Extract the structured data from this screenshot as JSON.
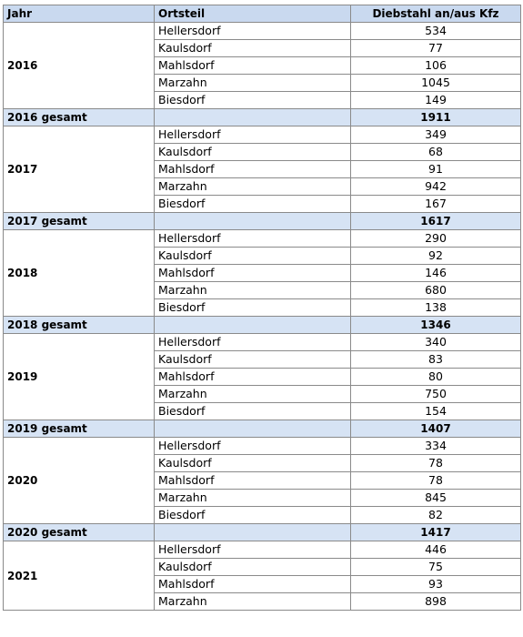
{
  "headers": {
    "year": "Jahr",
    "district": "Ortsteil",
    "value": "Diebstahl an/aus Kfz"
  },
  "years": [
    {
      "year": "2016",
      "rows": [
        {
          "district": "Hellersdorf",
          "value": "534"
        },
        {
          "district": "Kaulsdorf",
          "value": "77"
        },
        {
          "district": "Mahlsdorf",
          "value": "106"
        },
        {
          "district": "Marzahn",
          "value": "1045"
        },
        {
          "district": "Biesdorf",
          "value": "149"
        }
      ],
      "total_label": "2016 gesamt",
      "total": "1911"
    },
    {
      "year": "2017",
      "rows": [
        {
          "district": "Hellersdorf",
          "value": "349"
        },
        {
          "district": "Kaulsdorf",
          "value": "68"
        },
        {
          "district": "Mahlsdorf",
          "value": "91"
        },
        {
          "district": "Marzahn",
          "value": "942"
        },
        {
          "district": "Biesdorf",
          "value": "167"
        }
      ],
      "total_label": "2017 gesamt",
      "total": "1617"
    },
    {
      "year": "2018",
      "rows": [
        {
          "district": "Hellersdorf",
          "value": "290"
        },
        {
          "district": "Kaulsdorf",
          "value": "92"
        },
        {
          "district": "Mahlsdorf",
          "value": "146"
        },
        {
          "district": "Marzahn",
          "value": "680"
        },
        {
          "district": "Biesdorf",
          "value": "138"
        }
      ],
      "total_label": "2018 gesamt",
      "total": "1346"
    },
    {
      "year": "2019",
      "rows": [
        {
          "district": "Hellersdorf",
          "value": "340"
        },
        {
          "district": "Kaulsdorf",
          "value": "83"
        },
        {
          "district": "Mahlsdorf",
          "value": "80"
        },
        {
          "district": "Marzahn",
          "value": "750"
        },
        {
          "district": "Biesdorf",
          "value": "154"
        }
      ],
      "total_label": "2019 gesamt",
      "total": "1407"
    },
    {
      "year": "2020",
      "rows": [
        {
          "district": "Hellersdorf",
          "value": "334"
        },
        {
          "district": "Kaulsdorf",
          "value": "78"
        },
        {
          "district": "Mahlsdorf",
          "value": "78"
        },
        {
          "district": "Marzahn",
          "value": "845"
        },
        {
          "district": "Biesdorf",
          "value": "82"
        }
      ],
      "total_label": "2020 gesamt",
      "total": "1417"
    },
    {
      "year": "2021",
      "rows": [
        {
          "district": "Hellersdorf",
          "value": "446"
        },
        {
          "district": "Kaulsdorf",
          "value": "75"
        },
        {
          "district": "Mahlsdorf",
          "value": "93"
        },
        {
          "district": "Marzahn",
          "value": "898"
        }
      ]
    }
  ],
  "colors": {
    "header_bg": "#c9d9ef",
    "total_bg": "#d6e3f4",
    "border": "#8a8a8a"
  }
}
